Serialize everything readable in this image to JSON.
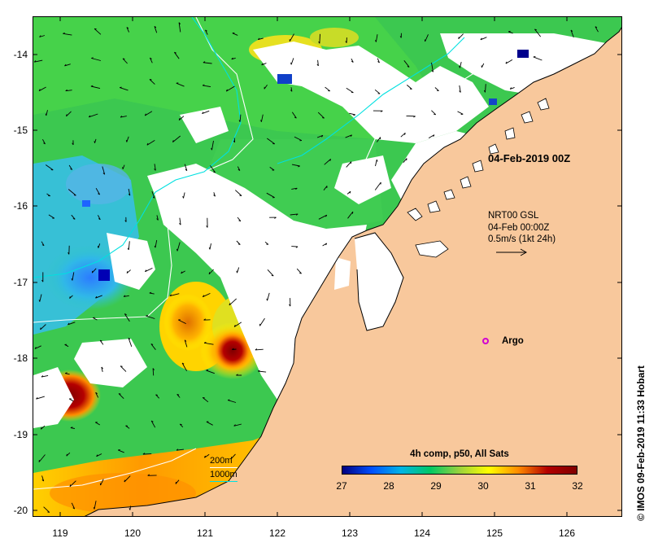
{
  "map": {
    "date_label": "04-Feb-2019 00Z",
    "current_source": "NRT00 GSL",
    "current_time": "04-Feb 00:00Z",
    "current_scale": "0.5m/s (1kt 24h)",
    "argo_label": "Argo",
    "contour_legend": [
      "200m",
      "1000m"
    ],
    "y_ticks": [
      "-14",
      "-15",
      "-16",
      "-17",
      "-18",
      "-19",
      "-20"
    ],
    "x_ticks": [
      "119",
      "120",
      "121",
      "122",
      "123",
      "124",
      "125",
      "126"
    ],
    "colorbar": {
      "title": "4h comp, p50, All Sats",
      "ticks": [
        "27",
        "28",
        "29",
        "30",
        "31",
        "32"
      ],
      "colors": [
        "#000080",
        "#0050ff",
        "#00b4e6",
        "#00c864",
        "#9bd23c",
        "#ffff00",
        "#ff8c00",
        "#b40000",
        "#800000"
      ]
    },
    "credit": "© IMOS 09-Feb-2019 11:33 Hobart",
    "colors": {
      "land": "#f8c89c",
      "sst_green": "#3cc850",
      "contour_200m": "#ffffff",
      "contour_1000m": "#00e0e0",
      "argo": "#d100d1"
    }
  }
}
